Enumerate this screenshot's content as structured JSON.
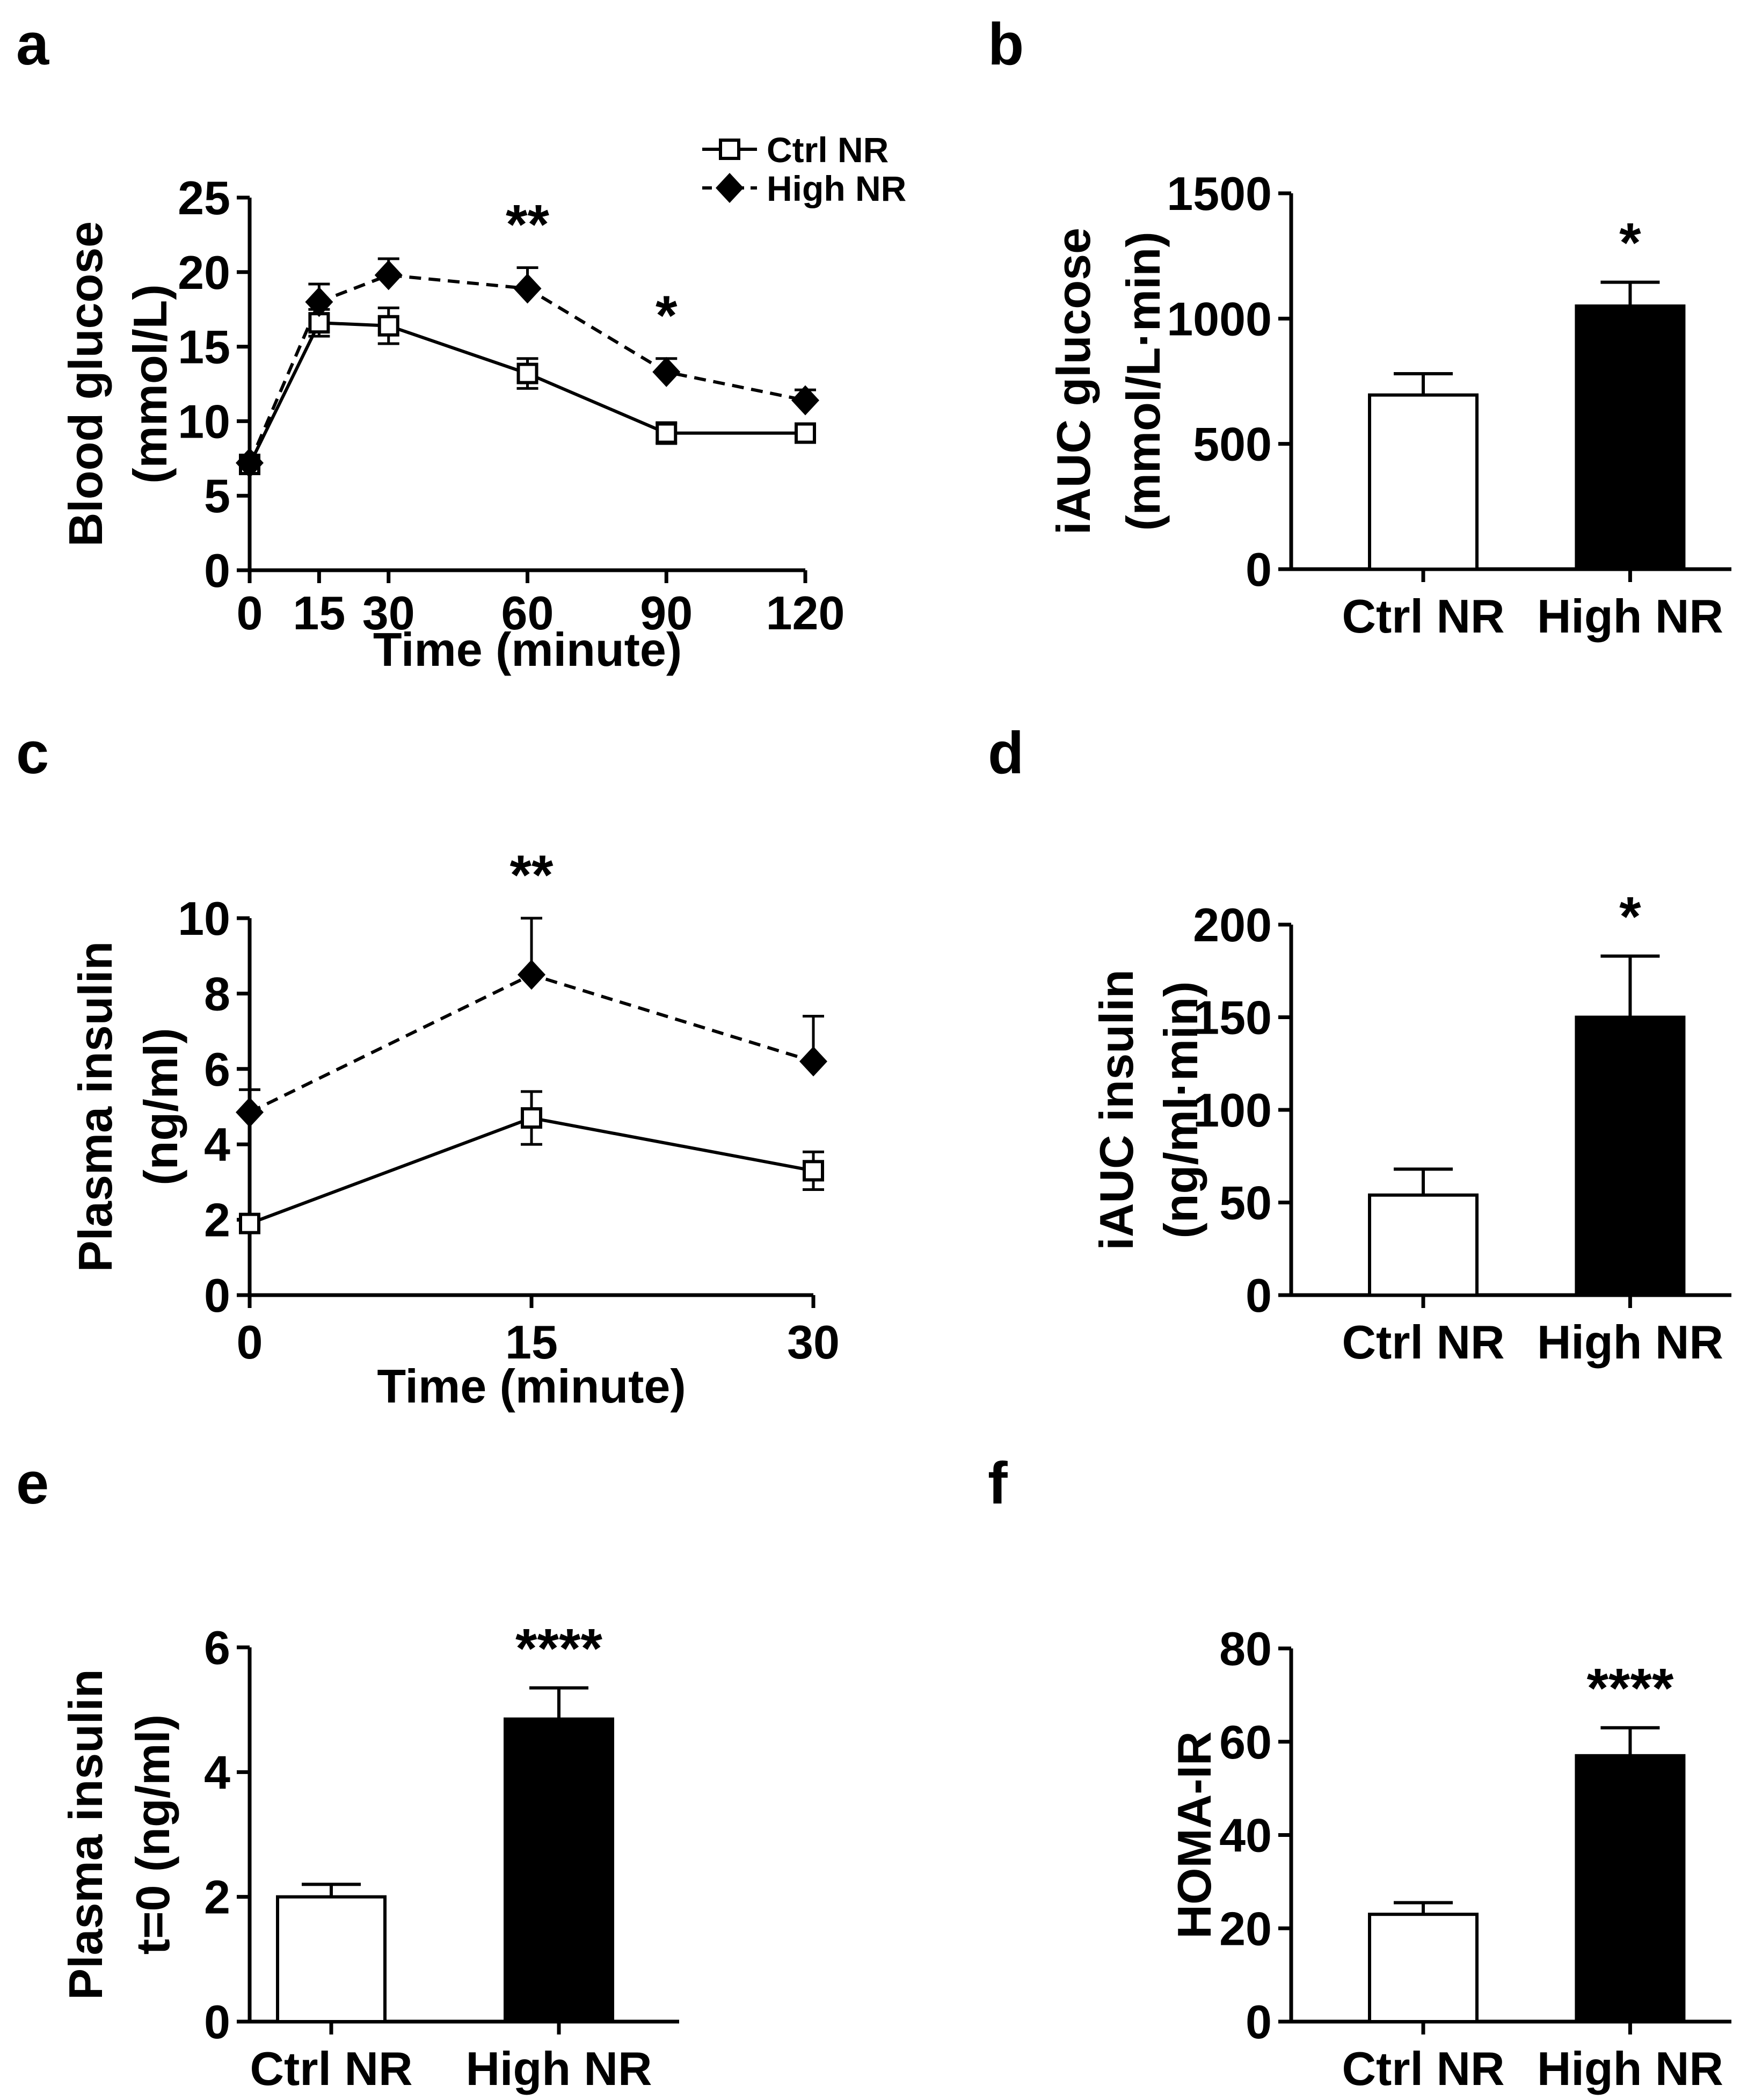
{
  "figure": {
    "legend": {
      "series": [
        "Ctrl NR",
        "High NR"
      ]
    },
    "colors": {
      "ctrl_fill": "#ffffff",
      "high_fill": "#000000",
      "stroke": "#000000"
    }
  },
  "chart_data": [
    {
      "panel": "a",
      "type": "line",
      "title": "",
      "xlabel": "Time (minute)",
      "ylabel": [
        "Blood glucose",
        "(mmol/L)"
      ],
      "x": [
        0,
        15,
        30,
        60,
        90,
        120
      ],
      "xticks": [
        "0",
        "15",
        "30",
        "60",
        "90",
        "120"
      ],
      "ylim": [
        0,
        25
      ],
      "yticks": [
        "0",
        "5",
        "10",
        "15",
        "20",
        "25"
      ],
      "series": [
        {
          "name": "Ctrl NR",
          "marker": "open-square",
          "line": "solid",
          "values": [
            7.1,
            16.6,
            16.4,
            13.2,
            9.2,
            9.2
          ],
          "err": [
            0.4,
            0.9,
            1.2,
            1.0,
            0.7,
            0.4
          ]
        },
        {
          "name": "High NR",
          "marker": "filled-diamond",
          "line": "dashed",
          "values": [
            7.2,
            18.0,
            19.8,
            18.9,
            13.3,
            11.4
          ],
          "err": [
            0.4,
            1.2,
            1.1,
            1.4,
            0.9,
            0.7
          ]
        }
      ],
      "annotations": [
        {
          "x": 60,
          "text": "**"
        },
        {
          "x": 90,
          "text": "*"
        }
      ],
      "legend": "top-right"
    },
    {
      "panel": "b",
      "type": "bar",
      "categories": [
        "Ctrl NR",
        "High NR"
      ],
      "values": [
        695,
        1050
      ],
      "err": [
        85,
        95
      ],
      "ylabel": [
        "iAUC glucose",
        "(mmol/L·min)"
      ],
      "ylim": [
        0,
        1500
      ],
      "yticks": [
        "0",
        "500",
        "1000",
        "1500"
      ],
      "annotations": [
        {
          "category": "High NR",
          "text": "*"
        }
      ]
    },
    {
      "panel": "c",
      "type": "line",
      "xlabel": "Time (minute)",
      "ylabel": [
        "Plasma insulin",
        "(ng/ml)"
      ],
      "x": [
        0,
        15,
        30
      ],
      "xticks": [
        "0",
        "15",
        "30"
      ],
      "ylim": [
        0,
        10
      ],
      "yticks": [
        "0",
        "2",
        "4",
        "6",
        "8",
        "10"
      ],
      "series": [
        {
          "name": "Ctrl NR",
          "marker": "open-square",
          "line": "solid",
          "values": [
            1.9,
            4.7,
            3.3
          ],
          "err": [
            0.2,
            0.7,
            0.5
          ]
        },
        {
          "name": "High NR",
          "marker": "filled-diamond",
          "line": "dashed",
          "values": [
            4.85,
            8.5,
            6.2
          ],
          "err": [
            0.6,
            1.5,
            1.2
          ]
        }
      ],
      "annotations": [
        {
          "x": 15,
          "text": "**"
        }
      ]
    },
    {
      "panel": "d",
      "type": "bar",
      "categories": [
        "Ctrl NR",
        "High NR"
      ],
      "values": [
        54,
        150
      ],
      "err": [
        14,
        33
      ],
      "ylabel": [
        "iAUC insulin",
        "(ng/ml·min)"
      ],
      "ylim": [
        0,
        200
      ],
      "yticks": [
        "0",
        "50",
        "100",
        "150",
        "200"
      ],
      "annotations": [
        {
          "category": "High NR",
          "text": "*"
        }
      ]
    },
    {
      "panel": "e",
      "type": "bar",
      "categories": [
        "Ctrl NR",
        "High NR"
      ],
      "values": [
        2.0,
        4.85
      ],
      "err": [
        0.2,
        0.5
      ],
      "ylabel": [
        "Plasma insulin",
        "t=0 (ng/ml)"
      ],
      "ylim": [
        0,
        6
      ],
      "yticks": [
        "0",
        "2",
        "4",
        "6"
      ],
      "annotations": [
        {
          "category": "High NR",
          "text": "****"
        }
      ]
    },
    {
      "panel": "f",
      "type": "bar",
      "categories": [
        "Ctrl NR",
        "High NR"
      ],
      "values": [
        23,
        57
      ],
      "err": [
        2.5,
        6
      ],
      "ylabel": [
        "HOMA-IR"
      ],
      "ylim": [
        0,
        80
      ],
      "yticks": [
        "0",
        "20",
        "40",
        "60",
        "80"
      ],
      "annotations": [
        {
          "category": "High NR",
          "text": "****"
        }
      ]
    }
  ]
}
